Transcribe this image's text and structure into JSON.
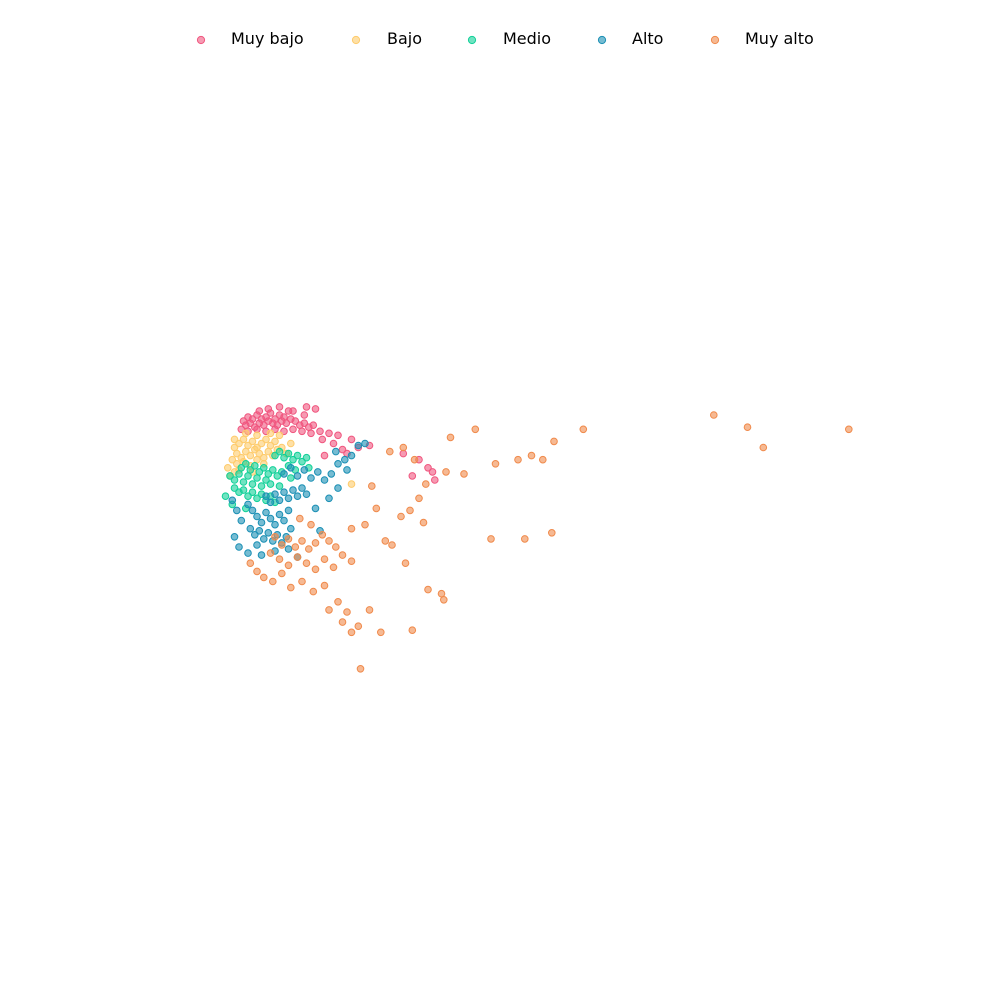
{
  "chart_data": {
    "type": "scatter",
    "title": "",
    "xlabel": "",
    "ylabel": "",
    "axes_visible": false,
    "grid": false,
    "legend_position": "top-center",
    "series": [
      {
        "name": "Muy bajo",
        "color": "#f0567f",
        "points": [
          [
            -2.6,
            2.9
          ],
          [
            -2.4,
            3.1
          ],
          [
            -2.2,
            3.0
          ],
          [
            -2.0,
            3.2
          ],
          [
            -1.8,
            3.0
          ],
          [
            -1.6,
            3.1
          ],
          [
            -1.4,
            3.3
          ],
          [
            -1.2,
            3.0
          ],
          [
            -1.0,
            3.2
          ],
          [
            -0.8,
            3.1
          ],
          [
            -2.5,
            2.7
          ],
          [
            -2.3,
            2.8
          ],
          [
            -2.1,
            2.6
          ],
          [
            -1.9,
            2.8
          ],
          [
            -1.7,
            2.7
          ],
          [
            -1.5,
            2.9
          ],
          [
            -1.3,
            2.8
          ],
          [
            -1.1,
            2.7
          ],
          [
            -0.9,
            2.9
          ],
          [
            -0.7,
            2.8
          ],
          [
            -0.5,
            3.0
          ],
          [
            -0.3,
            2.9
          ],
          [
            -0.1,
            2.7
          ],
          [
            0.1,
            2.8
          ],
          [
            0.3,
            2.6
          ],
          [
            0.5,
            2.7
          ],
          [
            -2.7,
            2.5
          ],
          [
            -2.4,
            2.4
          ],
          [
            -2.0,
            2.5
          ],
          [
            -1.6,
            2.4
          ],
          [
            -1.2,
            2.5
          ],
          [
            -0.8,
            2.4
          ],
          [
            -0.4,
            2.5
          ],
          [
            0.0,
            2.4
          ],
          [
            0.4,
            2.3
          ],
          [
            0.8,
            2.4
          ],
          [
            1.2,
            2.3
          ],
          [
            1.6,
            2.2
          ],
          [
            0.2,
            3.6
          ],
          [
            0.6,
            3.5
          ],
          [
            -0.6,
            3.4
          ],
          [
            0.9,
            2.0
          ],
          [
            1.4,
            1.8
          ],
          [
            1.8,
            1.5
          ],
          [
            2.2,
            2.0
          ],
          [
            2.5,
            1.6
          ],
          [
            3.0,
            1.7
          ],
          [
            4.5,
            1.3
          ],
          [
            5.2,
            1.0
          ],
          [
            5.6,
            0.6
          ],
          [
            5.8,
            0.4
          ],
          [
            5.9,
            0.0
          ],
          [
            4.9,
            0.2
          ],
          [
            1.0,
            1.2
          ],
          [
            2.0,
            1.3
          ],
          [
            -1.9,
            3.4
          ],
          [
            -1.5,
            3.5
          ],
          [
            -1.0,
            3.6
          ],
          [
            -0.4,
            3.4
          ],
          [
            0.1,
            3.2
          ]
        ]
      },
      {
        "name": "Bajo",
        "color": "#fecb6b",
        "points": [
          [
            -3.0,
            1.6
          ],
          [
            -2.8,
            1.8
          ],
          [
            -2.6,
            2.0
          ],
          [
            -2.4,
            1.7
          ],
          [
            -2.2,
            1.9
          ],
          [
            -2.0,
            1.6
          ],
          [
            -1.8,
            1.8
          ],
          [
            -1.6,
            2.0
          ],
          [
            -1.4,
            1.7
          ],
          [
            -1.2,
            1.9
          ],
          [
            -2.9,
            1.3
          ],
          [
            -2.7,
            1.1
          ],
          [
            -2.5,
            1.4
          ],
          [
            -2.3,
            1.2
          ],
          [
            -2.1,
            1.5
          ],
          [
            -1.9,
            1.3
          ],
          [
            -1.7,
            1.1
          ],
          [
            -1.5,
            1.4
          ],
          [
            -1.3,
            1.2
          ],
          [
            -1.1,
            1.5
          ],
          [
            -3.1,
            1.0
          ],
          [
            -2.9,
            0.8
          ],
          [
            -2.6,
            0.9
          ],
          [
            -2.3,
            0.7
          ],
          [
            -2.0,
            1.0
          ],
          [
            -1.7,
            0.8
          ],
          [
            -3.3,
            0.6
          ],
          [
            -3.2,
            0.2
          ],
          [
            -3.0,
            0.4
          ],
          [
            -2.8,
            0.5
          ],
          [
            -0.9,
            1.6
          ],
          [
            -0.7,
            1.3
          ],
          [
            -1.0,
            2.2
          ],
          [
            -1.4,
            2.3
          ],
          [
            -2.0,
            2.2
          ],
          [
            -2.5,
            2.3
          ],
          [
            -3.0,
            2.0
          ],
          [
            -0.5,
            1.8
          ],
          [
            2.2,
            -0.2
          ],
          [
            -2.2,
            0.4
          ]
        ]
      },
      {
        "name": "Medio",
        "color": "#10d098",
        "points": [
          [
            -3.2,
            0.2
          ],
          [
            -3.0,
            0.0
          ],
          [
            -2.8,
            0.3
          ],
          [
            -2.6,
            -0.1
          ],
          [
            -2.4,
            0.2
          ],
          [
            -2.2,
            -0.2
          ],
          [
            -2.0,
            0.1
          ],
          [
            -1.8,
            -0.3
          ],
          [
            -1.6,
            0.0
          ],
          [
            -1.4,
            -0.2
          ],
          [
            -3.0,
            -0.4
          ],
          [
            -2.8,
            -0.6
          ],
          [
            -2.6,
            -0.5
          ],
          [
            -2.4,
            -0.8
          ],
          [
            -2.2,
            -0.6
          ],
          [
            -2.0,
            -0.9
          ],
          [
            -1.8,
            -0.7
          ],
          [
            -1.6,
            -1.0
          ],
          [
            -1.4,
            -0.8
          ],
          [
            -1.2,
            -1.1
          ],
          [
            -2.7,
            0.6
          ],
          [
            -2.5,
            0.8
          ],
          [
            -2.3,
            0.5
          ],
          [
            -2.1,
            0.7
          ],
          [
            -1.9,
            0.4
          ],
          [
            -1.7,
            0.6
          ],
          [
            -1.5,
            0.3
          ],
          [
            -1.3,
            0.5
          ],
          [
            -1.1,
            0.2
          ],
          [
            -0.9,
            0.4
          ],
          [
            -1.2,
            1.2
          ],
          [
            -1.0,
            1.4
          ],
          [
            -0.8,
            1.1
          ],
          [
            -0.6,
            1.3
          ],
          [
            -0.4,
            1.0
          ],
          [
            -0.2,
            1.2
          ],
          [
            0.0,
            0.9
          ],
          [
            0.2,
            1.1
          ],
          [
            -0.6,
            0.7
          ],
          [
            -0.3,
            0.5
          ],
          [
            -3.4,
            -0.8
          ],
          [
            -3.1,
            -1.2
          ],
          [
            -2.5,
            -1.4
          ],
          [
            -1.0,
            -0.3
          ],
          [
            -0.5,
            0.1
          ],
          [
            0.3,
            0.6
          ]
        ]
      },
      {
        "name": "Alto",
        "color": "#1a8fb4",
        "points": [
          [
            -2.4,
            -1.2
          ],
          [
            -2.2,
            -1.5
          ],
          [
            -2.0,
            -1.8
          ],
          [
            -1.8,
            -2.1
          ],
          [
            -1.6,
            -1.6
          ],
          [
            -1.4,
            -1.9
          ],
          [
            -1.2,
            -2.2
          ],
          [
            -1.0,
            -1.7
          ],
          [
            -0.8,
            -2.0
          ],
          [
            -0.6,
            -1.5
          ],
          [
            -2.3,
            -2.4
          ],
          [
            -2.1,
            -2.7
          ],
          [
            -1.9,
            -2.5
          ],
          [
            -1.7,
            -2.9
          ],
          [
            -1.5,
            -2.6
          ],
          [
            -1.3,
            -3.0
          ],
          [
            -1.1,
            -2.7
          ],
          [
            -0.9,
            -3.1
          ],
          [
            -0.7,
            -2.8
          ],
          [
            -0.5,
            -2.4
          ],
          [
            -1.6,
            -0.8
          ],
          [
            -1.4,
            -1.1
          ],
          [
            -1.2,
            -0.7
          ],
          [
            -1.0,
            -1.0
          ],
          [
            -0.8,
            -0.6
          ],
          [
            -0.6,
            -0.9
          ],
          [
            -0.4,
            -0.5
          ],
          [
            -0.2,
            -0.8
          ],
          [
            0.0,
            -0.4
          ],
          [
            0.2,
            -0.7
          ],
          [
            -0.8,
            0.3
          ],
          [
            -0.5,
            0.6
          ],
          [
            -0.2,
            0.2
          ],
          [
            0.1,
            0.5
          ],
          [
            0.4,
            0.1
          ],
          [
            0.7,
            0.4
          ],
          [
            1.0,
            0.0
          ],
          [
            1.3,
            0.3
          ],
          [
            1.6,
            0.8
          ],
          [
            1.9,
            1.0
          ],
          [
            2.2,
            1.2
          ],
          [
            2.5,
            1.7
          ],
          [
            2.8,
            1.8
          ],
          [
            1.5,
            1.4
          ],
          [
            2.0,
            0.5
          ],
          [
            1.2,
            -0.9
          ],
          [
            0.6,
            -1.4
          ],
          [
            -2.7,
            -2.0
          ],
          [
            -2.9,
            -1.5
          ],
          [
            -3.1,
            -1.0
          ],
          [
            -2.8,
            -3.3
          ],
          [
            -2.4,
            -3.6
          ],
          [
            -1.8,
            -3.7
          ],
          [
            -1.2,
            -3.5
          ],
          [
            -0.6,
            -3.4
          ],
          [
            -0.2,
            -3.8
          ],
          [
            0.8,
            -2.5
          ],
          [
            1.6,
            -0.4
          ],
          [
            -3.0,
            -2.8
          ],
          [
            -2.0,
            -3.2
          ]
        ]
      },
      {
        "name": "Muy alto",
        "color": "#f08a4b",
        "points": [
          [
            -1.2,
            -2.8
          ],
          [
            -0.9,
            -3.2
          ],
          [
            -0.6,
            -2.9
          ],
          [
            -0.3,
            -3.3
          ],
          [
            0.0,
            -3.0
          ],
          [
            0.3,
            -3.4
          ],
          [
            0.6,
            -3.1
          ],
          [
            0.9,
            -2.7
          ],
          [
            1.2,
            -3.0
          ],
          [
            1.5,
            -3.3
          ],
          [
            -1.4,
            -3.6
          ],
          [
            -1.0,
            -3.9
          ],
          [
            -0.6,
            -4.2
          ],
          [
            -0.2,
            -3.8
          ],
          [
            0.2,
            -4.1
          ],
          [
            0.6,
            -4.4
          ],
          [
            1.0,
            -3.9
          ],
          [
            1.4,
            -4.3
          ],
          [
            1.8,
            -3.7
          ],
          [
            2.2,
            -4.0
          ],
          [
            -2.3,
            -4.1
          ],
          [
            -2.0,
            -4.5
          ],
          [
            -1.7,
            -4.8
          ],
          [
            -1.3,
            -5.0
          ],
          [
            -0.9,
            -4.6
          ],
          [
            -0.5,
            -5.3
          ],
          [
            0.0,
            -5.0
          ],
          [
            0.5,
            -5.5
          ],
          [
            1.0,
            -5.2
          ],
          [
            1.6,
            -6.0
          ],
          [
            2.0,
            -6.5
          ],
          [
            2.5,
            -7.2
          ],
          [
            3.0,
            -6.4
          ],
          [
            3.5,
            -7.5
          ],
          [
            1.8,
            -7.0
          ],
          [
            2.2,
            -2.4
          ],
          [
            2.8,
            -2.2
          ],
          [
            3.3,
            -1.4
          ],
          [
            3.7,
            -3.0
          ],
          [
            4.0,
            -3.2
          ],
          [
            4.4,
            -1.8
          ],
          [
            4.8,
            -1.5
          ],
          [
            5.2,
            -0.9
          ],
          [
            5.5,
            -0.2
          ],
          [
            4.6,
            -4.1
          ],
          [
            5.4,
            -2.1
          ],
          [
            5.6,
            -5.4
          ],
          [
            4.9,
            -7.4
          ],
          [
            6.2,
            -5.6
          ],
          [
            6.3,
            -5.9
          ],
          [
            2.6,
            -9.3
          ],
          [
            2.2,
            -7.5
          ],
          [
            1.2,
            -6.4
          ],
          [
            8.4,
            -2.9
          ],
          [
            9.9,
            -2.9
          ],
          [
            11.1,
            -2.6
          ],
          [
            3.9,
            1.4
          ],
          [
            4.5,
            1.6
          ],
          [
            5.0,
            1.0
          ],
          [
            6.6,
            2.1
          ],
          [
            7.7,
            2.5
          ],
          [
            8.6,
            0.8
          ],
          [
            9.6,
            1.0
          ],
          [
            10.7,
            1.0
          ],
          [
            11.2,
            1.9
          ],
          [
            12.5,
            2.5
          ],
          [
            18.3,
            3.2
          ],
          [
            19.8,
            2.6
          ],
          [
            20.5,
            1.6
          ],
          [
            24.3,
            2.5
          ],
          [
            6.4,
            0.4
          ],
          [
            7.2,
            0.3
          ],
          [
            10.2,
            1.2
          ],
          [
            3.1,
            -0.3
          ],
          [
            0.4,
            -2.2
          ],
          [
            -0.1,
            -1.9
          ]
        ]
      }
    ]
  }
}
